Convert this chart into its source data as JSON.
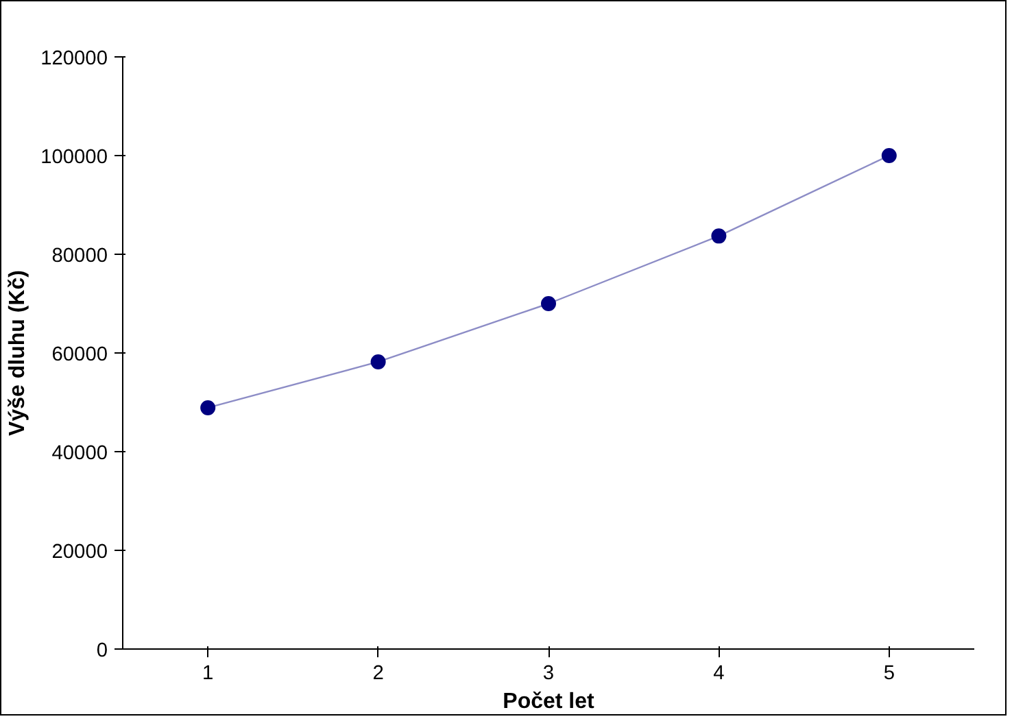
{
  "chart_data": {
    "type": "line",
    "xlabel": "Počet let",
    "ylabel": "Výše dluhu (Kč)",
    "categories": [
      "1",
      "2",
      "3",
      "4",
      "5"
    ],
    "series": [
      {
        "color": "#000080",
        "values": [
          48900,
          58200,
          70000,
          83700,
          100000
        ]
      }
    ],
    "ylim": [
      0,
      120000
    ],
    "yticks": [
      0,
      20000,
      40000,
      60000,
      80000,
      100000,
      120000
    ],
    "marker": "circle",
    "line_style": "solid"
  }
}
